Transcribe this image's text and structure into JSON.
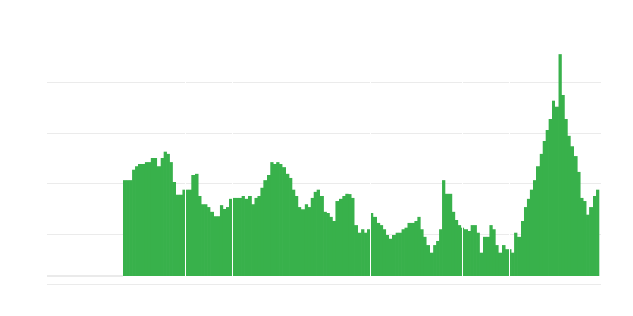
{
  "chart_data": {
    "type": "bar",
    "title": "",
    "xlabel": "",
    "ylabel": "",
    "ylim": [
      0,
      500
    ],
    "grid": true,
    "gridlines": [
      0,
      100,
      200,
      300,
      400,
      500
    ],
    "bar_color": "#38b14b",
    "grid_color": "#ebebeb",
    "axis_color": "#aaaaaa",
    "leading_empty_fraction": 0.136,
    "values": [
      206,
      206,
      206,
      227,
      234,
      238,
      238,
      242,
      242,
      250,
      250,
      234,
      250,
      263,
      258,
      242,
      203,
      177,
      177,
      188,
      188,
      188,
      216,
      219,
      175,
      159,
      159,
      153,
      144,
      134,
      134,
      156,
      150,
      153,
      169,
      172,
      172,
      172,
      175,
      169,
      175,
      159,
      172,
      175,
      191,
      206,
      216,
      242,
      238,
      242,
      238,
      231,
      219,
      211,
      188,
      175,
      153,
      148,
      159,
      153,
      172,
      183,
      188,
      175,
      144,
      141,
      133,
      125,
      164,
      169,
      175,
      180,
      178,
      172,
      117,
      102,
      109,
      102,
      109,
      141,
      133,
      122,
      117,
      109,
      97,
      91,
      97,
      102,
      102,
      109,
      113,
      122,
      122,
      125,
      133,
      109,
      94,
      78,
      63,
      78,
      86,
      109,
      206,
      180,
      180,
      144,
      128,
      117,
      113,
      109,
      106,
      117,
      117,
      102,
      63,
      94,
      94,
      117,
      109,
      78,
      63,
      78,
      70,
      70,
      63,
      102,
      94,
      125,
      153,
      169,
      188,
      206,
      234,
      258,
      284,
      305,
      328,
      363,
      352,
      456,
      375,
      328,
      294,
      273,
      253,
      222,
      172,
      164,
      138,
      153,
      175,
      188
    ]
  }
}
